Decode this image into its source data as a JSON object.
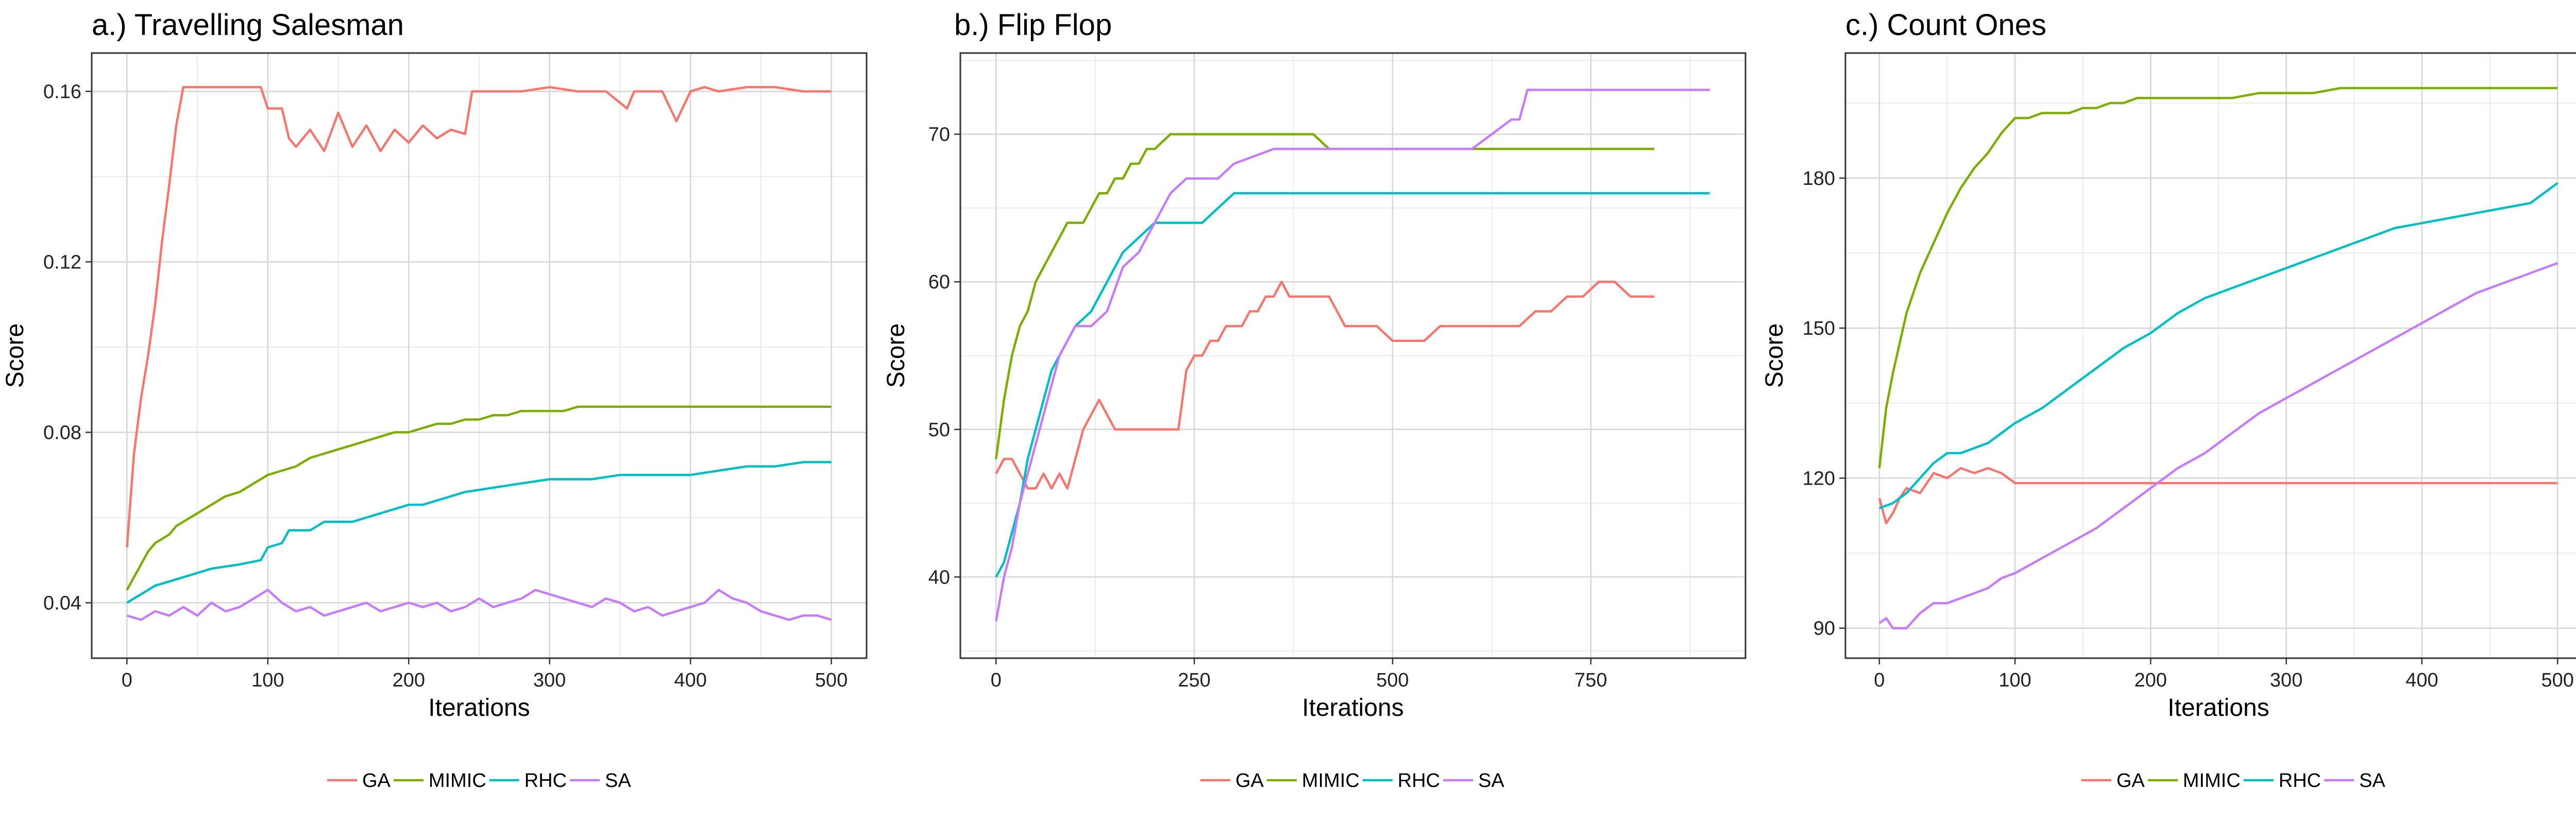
{
  "series_colors": {
    "GA": "#F8766D",
    "MIMIC": "#7CAE00",
    "RHC": "#00BFC4",
    "SA": "#C77CFF"
  },
  "chart_data": [
    {
      "type": "line",
      "title": "a.) Travelling Salesman",
      "xlabel": "Iterations",
      "ylabel": "Score",
      "xlim": [
        -25,
        525
      ],
      "ylim": [
        0.027,
        0.169
      ],
      "xticks": [
        0,
        100,
        200,
        300,
        400,
        500
      ],
      "xtick_labels": [
        "0",
        "100",
        "200",
        "300",
        "400",
        "500"
      ],
      "yticks": [
        0.04,
        0.08,
        0.12,
        0.16
      ],
      "ytick_labels": [
        "0.04",
        "0.08",
        "0.12",
        "0.16"
      ],
      "grid": true,
      "legend": "bottom",
      "series": [
        {
          "name": "GA",
          "x": [
            0,
            5,
            10,
            15,
            20,
            25,
            30,
            35,
            40,
            60,
            80,
            95,
            100,
            110,
            115,
            120,
            130,
            140,
            150,
            160,
            170,
            180,
            190,
            200,
            210,
            220,
            230,
            240,
            245,
            260,
            280,
            300,
            320,
            340,
            355,
            360,
            370,
            380,
            390,
            400,
            410,
            420,
            440,
            460,
            480,
            500
          ],
          "y": [
            0.053,
            0.075,
            0.088,
            0.098,
            0.11,
            0.125,
            0.138,
            0.152,
            0.161,
            0.161,
            0.161,
            0.161,
            0.156,
            0.156,
            0.149,
            0.147,
            0.151,
            0.146,
            0.155,
            0.147,
            0.152,
            0.146,
            0.151,
            0.148,
            0.152,
            0.149,
            0.151,
            0.15,
            0.16,
            0.16,
            0.16,
            0.161,
            0.16,
            0.16,
            0.156,
            0.16,
            0.16,
            0.16,
            0.153,
            0.16,
            0.161,
            0.16,
            0.161,
            0.161,
            0.16,
            0.16
          ]
        },
        {
          "name": "MIMIC",
          "x": [
            0,
            5,
            10,
            15,
            20,
            25,
            30,
            35,
            40,
            50,
            60,
            70,
            80,
            90,
            100,
            110,
            120,
            130,
            140,
            150,
            160,
            170,
            180,
            190,
            200,
            210,
            220,
            230,
            240,
            250,
            260,
            270,
            280,
            290,
            300,
            310,
            320,
            330,
            340,
            350,
            360,
            370,
            380,
            390,
            400,
            410,
            420,
            430,
            440,
            450,
            460,
            470,
            480,
            490,
            500
          ],
          "y": [
            0.043,
            0.046,
            0.049,
            0.052,
            0.054,
            0.055,
            0.056,
            0.058,
            0.059,
            0.061,
            0.063,
            0.065,
            0.066,
            0.068,
            0.07,
            0.071,
            0.072,
            0.074,
            0.075,
            0.076,
            0.077,
            0.078,
            0.079,
            0.08,
            0.08,
            0.081,
            0.082,
            0.082,
            0.083,
            0.083,
            0.084,
            0.084,
            0.085,
            0.085,
            0.085,
            0.085,
            0.086,
            0.086,
            0.086,
            0.086,
            0.086,
            0.086,
            0.086,
            0.086,
            0.086,
            0.086,
            0.086,
            0.086,
            0.086,
            0.086,
            0.086,
            0.086,
            0.086,
            0.086,
            0.086
          ]
        },
        {
          "name": "RHC",
          "x": [
            0,
            10,
            20,
            40,
            60,
            80,
            95,
            100,
            110,
            115,
            130,
            140,
            160,
            180,
            200,
            210,
            230,
            240,
            260,
            280,
            300,
            330,
            350,
            380,
            400,
            420,
            440,
            460,
            480,
            500
          ],
          "y": [
            0.04,
            0.042,
            0.044,
            0.046,
            0.048,
            0.049,
            0.05,
            0.053,
            0.054,
            0.057,
            0.057,
            0.059,
            0.059,
            0.061,
            0.063,
            0.063,
            0.065,
            0.066,
            0.067,
            0.068,
            0.069,
            0.069,
            0.07,
            0.07,
            0.07,
            0.071,
            0.072,
            0.072,
            0.073,
            0.073
          ]
        },
        {
          "name": "SA",
          "x": [
            0,
            10,
            20,
            30,
            40,
            50,
            60,
            70,
            80,
            90,
            100,
            110,
            120,
            130,
            140,
            150,
            160,
            170,
            180,
            190,
            200,
            210,
            220,
            230,
            240,
            250,
            260,
            270,
            280,
            290,
            300,
            310,
            320,
            330,
            340,
            350,
            360,
            370,
            380,
            390,
            400,
            410,
            420,
            430,
            440,
            450,
            460,
            470,
            480,
            490,
            500
          ],
          "y": [
            0.037,
            0.036,
            0.038,
            0.037,
            0.039,
            0.037,
            0.04,
            0.038,
            0.039,
            0.041,
            0.043,
            0.04,
            0.038,
            0.039,
            0.037,
            0.038,
            0.039,
            0.04,
            0.038,
            0.039,
            0.04,
            0.039,
            0.04,
            0.038,
            0.039,
            0.041,
            0.039,
            0.04,
            0.041,
            0.043,
            0.042,
            0.041,
            0.04,
            0.039,
            0.041,
            0.04,
            0.038,
            0.039,
            0.037,
            0.038,
            0.039,
            0.04,
            0.043,
            0.041,
            0.04,
            0.038,
            0.037,
            0.036,
            0.037,
            0.037,
            0.036
          ]
        }
      ]
    },
    {
      "type": "line",
      "title": "b.) Flip Flop",
      "xlabel": "Iterations",
      "ylabel": "Score",
      "xlim": [
        -45,
        945
      ],
      "ylim": [
        34.5,
        75.5
      ],
      "xticks": [
        0,
        250,
        500,
        750
      ],
      "xtick_labels": [
        "0",
        "250",
        "500",
        "750"
      ],
      "yticks": [
        40,
        50,
        60,
        70
      ],
      "ytick_labels": [
        "40",
        "50",
        "60",
        "70"
      ],
      "grid": true,
      "legend": "bottom",
      "series": [
        {
          "name": "GA",
          "x": [
            0,
            10,
            20,
            30,
            40,
            50,
            60,
            70,
            80,
            90,
            100,
            110,
            120,
            130,
            140,
            150,
            160,
            170,
            180,
            190,
            200,
            210,
            220,
            230,
            240,
            250,
            260,
            270,
            280,
            290,
            300,
            310,
            320,
            330,
            340,
            350,
            360,
            370,
            380,
            390,
            400,
            420,
            440,
            460,
            480,
            500,
            520,
            540,
            560,
            580,
            600,
            620,
            640,
            660,
            680,
            700,
            720,
            740,
            760,
            780,
            800,
            830
          ],
          "y": [
            47,
            48,
            48,
            47,
            46,
            46,
            47,
            46,
            47,
            46,
            48,
            50,
            51,
            52,
            51,
            50,
            50,
            50,
            50,
            50,
            50,
            50,
            50,
            50,
            54,
            55,
            55,
            56,
            56,
            57,
            57,
            57,
            58,
            58,
            59,
            59,
            60,
            59,
            59,
            59,
            59,
            59,
            57,
            57,
            57,
            56,
            56,
            56,
            57,
            57,
            57,
            57,
            57,
            57,
            58,
            58,
            59,
            59,
            60,
            60,
            59,
            59
          ]
        },
        {
          "name": "MIMIC",
          "x": [
            0,
            10,
            20,
            30,
            40,
            50,
            60,
            70,
            80,
            90,
            100,
            110,
            120,
            130,
            140,
            150,
            160,
            170,
            180,
            190,
            200,
            220,
            240,
            260,
            280,
            300,
            320,
            340,
            360,
            380,
            400,
            420,
            440,
            460,
            480,
            500,
            520,
            540,
            560,
            580,
            600,
            620,
            640,
            660,
            680,
            700,
            720,
            740,
            760,
            780,
            800,
            830
          ],
          "y": [
            48,
            52,
            55,
            57,
            58,
            60,
            61,
            62,
            63,
            64,
            64,
            64,
            65,
            66,
            66,
            67,
            67,
            68,
            68,
            69,
            69,
            70,
            70,
            70,
            70,
            70,
            70,
            70,
            70,
            70,
            70,
            69,
            69,
            69,
            69,
            69,
            69,
            69,
            69,
            69,
            69,
            69,
            69,
            69,
            69,
            69,
            69,
            69,
            69,
            69,
            69,
            69
          ]
        },
        {
          "name": "RHC",
          "x": [
            0,
            10,
            20,
            30,
            40,
            50,
            60,
            70,
            80,
            90,
            100,
            120,
            140,
            160,
            180,
            200,
            220,
            240,
            260,
            280,
            300,
            350,
            400,
            500,
            600,
            700,
            800,
            900
          ],
          "y": [
            40,
            41,
            43,
            45,
            48,
            50,
            52,
            54,
            55,
            56,
            57,
            58,
            60,
            62,
            63,
            64,
            64,
            64,
            64,
            65,
            66,
            66,
            66,
            66,
            66,
            66,
            66,
            66
          ]
        },
        {
          "name": "SA",
          "x": [
            0,
            10,
            20,
            30,
            40,
            50,
            60,
            70,
            80,
            90,
            100,
            120,
            140,
            160,
            180,
            200,
            220,
            240,
            260,
            280,
            300,
            350,
            400,
            500,
            600,
            650,
            660,
            670,
            700,
            800,
            900
          ],
          "y": [
            37,
            40,
            42,
            45,
            47,
            49,
            51,
            53,
            55,
            56,
            57,
            57,
            58,
            61,
            62,
            64,
            66,
            67,
            67,
            67,
            68,
            69,
            69,
            69,
            69,
            71,
            71,
            73,
            73,
            73,
            73
          ]
        }
      ]
    },
    {
      "type": "line",
      "title": "c.) Count Ones",
      "xlabel": "Iterations",
      "ylabel": "Score",
      "xlim": [
        -25,
        525
      ],
      "ylim": [
        84,
        205
      ],
      "xticks": [
        0,
        100,
        200,
        300,
        400,
        500
      ],
      "xtick_labels": [
        "0",
        "100",
        "200",
        "300",
        "400",
        "500"
      ],
      "yticks": [
        90,
        120,
        150,
        180
      ],
      "ytick_labels": [
        "90",
        "120",
        "150",
        "180"
      ],
      "grid": true,
      "legend": "bottom",
      "series": [
        {
          "name": "GA",
          "x": [
            0,
            5,
            10,
            15,
            20,
            30,
            40,
            50,
            60,
            70,
            80,
            90,
            95,
            100,
            150,
            200,
            300,
            400,
            500
          ],
          "y": [
            116,
            111,
            113,
            116,
            118,
            117,
            121,
            120,
            122,
            121,
            122,
            121,
            120,
            119,
            119,
            119,
            119,
            119,
            119
          ]
        },
        {
          "name": "MIMIC",
          "x": [
            0,
            5,
            10,
            15,
            20,
            30,
            40,
            50,
            60,
            70,
            80,
            90,
            100,
            110,
            120,
            130,
            140,
            150,
            160,
            170,
            180,
            190,
            200,
            220,
            240,
            260,
            280,
            300,
            320,
            340,
            360,
            380,
            400,
            450,
            500
          ],
          "y": [
            122,
            134,
            141,
            147,
            153,
            161,
            167,
            173,
            178,
            182,
            185,
            189,
            192,
            192,
            193,
            193,
            193,
            194,
            194,
            195,
            195,
            196,
            196,
            196,
            196,
            196,
            197,
            197,
            197,
            198,
            198,
            198,
            198,
            198,
            198
          ]
        },
        {
          "name": "RHC",
          "x": [
            0,
            10,
            20,
            30,
            40,
            50,
            60,
            70,
            80,
            90,
            100,
            120,
            140,
            160,
            180,
            200,
            220,
            240,
            260,
            280,
            300,
            320,
            340,
            360,
            380,
            400,
            420,
            440,
            460,
            480,
            490,
            500
          ],
          "y": [
            114,
            115,
            117,
            120,
            123,
            125,
            125,
            126,
            127,
            129,
            131,
            134,
            138,
            142,
            146,
            149,
            153,
            156,
            158,
            160,
            162,
            164,
            166,
            168,
            170,
            171,
            172,
            173,
            174,
            175,
            177,
            179
          ]
        },
        {
          "name": "SA",
          "x": [
            0,
            5,
            10,
            20,
            30,
            40,
            50,
            60,
            70,
            80,
            90,
            100,
            120,
            140,
            160,
            180,
            200,
            220,
            240,
            260,
            280,
            300,
            320,
            340,
            360,
            380,
            400,
            420,
            440,
            460,
            480,
            490,
            500
          ],
          "y": [
            91,
            92,
            90,
            90,
            93,
            95,
            95,
            96,
            97,
            98,
            100,
            101,
            104,
            107,
            110,
            114,
            118,
            122,
            125,
            129,
            133,
            136,
            139,
            142,
            145,
            148,
            151,
            154,
            157,
            159,
            161,
            162,
            163
          ]
        }
      ]
    }
  ]
}
